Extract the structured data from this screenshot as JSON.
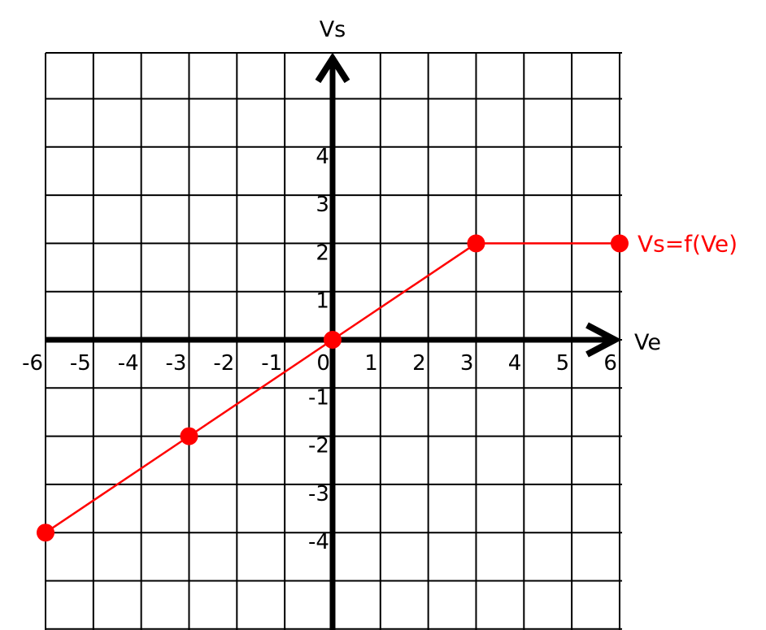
{
  "chart_data": {
    "type": "line",
    "xlabel": "Ve",
    "ylabel": "Vs",
    "xlim": [
      -6,
      6
    ],
    "ylim": [
      -6,
      6
    ],
    "grid": true,
    "x_ticks": [
      "-6",
      "-5",
      "-4",
      "-3",
      "-2",
      "-1",
      "0",
      "1",
      "2",
      "3",
      "4",
      "5",
      "6"
    ],
    "y_ticks": [
      {
        "value": 4,
        "label": "4"
      },
      {
        "value": 3,
        "label": "3"
      },
      {
        "value": 2,
        "label": "2"
      },
      {
        "value": 1,
        "label": "1"
      },
      {
        "value": -1,
        "label": "-1"
      },
      {
        "value": -2,
        "label": "-2"
      },
      {
        "value": -3,
        "label": "-3"
      },
      {
        "value": -4,
        "label": "-4"
      }
    ],
    "series": [
      {
        "name": "Vs=f(Ve)",
        "color": "#ff0000",
        "points": [
          {
            "x": -6,
            "y": -4
          },
          {
            "x": -3,
            "y": -2
          },
          {
            "x": 0,
            "y": 0
          },
          {
            "x": 3,
            "y": 2
          },
          {
            "x": 6,
            "y": 2
          }
        ]
      }
    ]
  }
}
